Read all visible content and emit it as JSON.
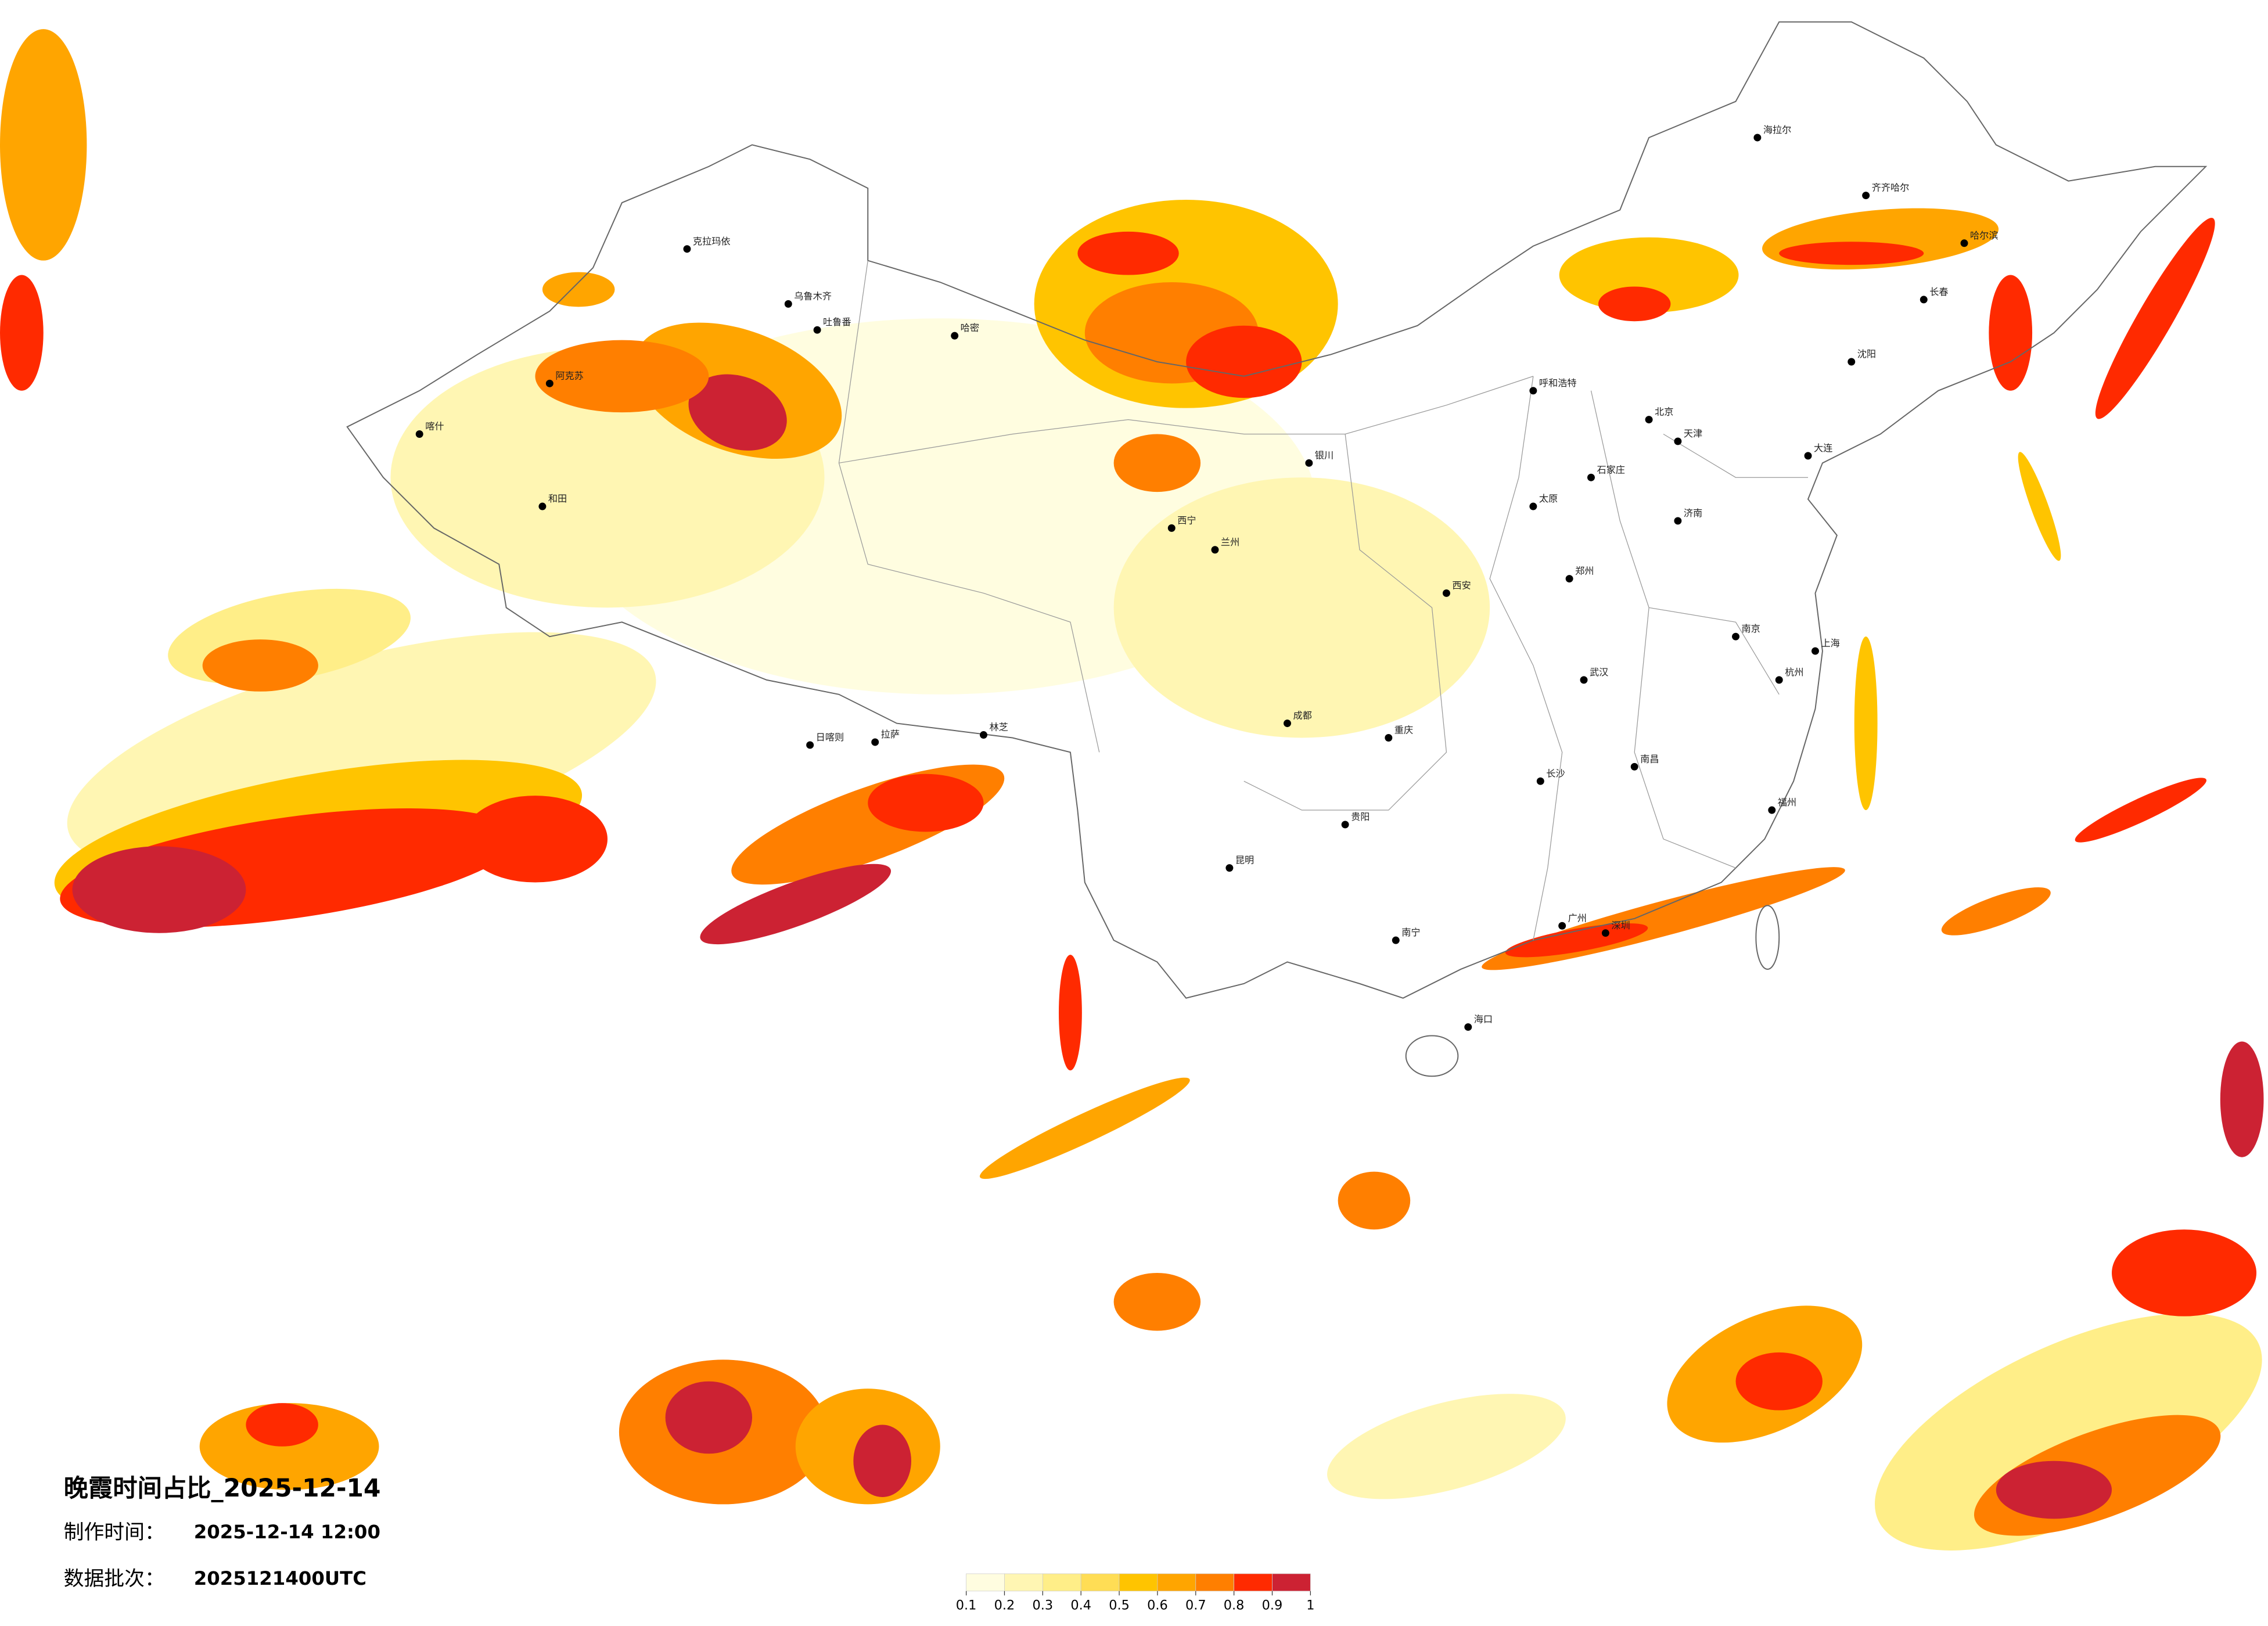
{
  "header": {
    "title": "晚霞时间占比_2025-12-14",
    "made_label": "制作时间：",
    "made_value": "2025-12-14 12:00",
    "batch_label": "数据批次：",
    "batch_value": "2025121400UTC"
  },
  "colorbar": {
    "ticks": [
      0.1,
      0.2,
      0.3,
      0.4,
      0.5,
      0.6,
      0.7,
      0.8,
      0.9,
      1
    ],
    "colors": [
      "#fffde0",
      "#fff6b3",
      "#ffee88",
      "#ffdd55",
      "#ffc400",
      "#ffa500",
      "#ff7f00",
      "#ff2a00",
      "#cc2233"
    ]
  },
  "cities": [
    "克拉玛依",
    "乌鲁木齐",
    "吐鲁番",
    "哈密",
    "阿克苏",
    "喀什",
    "和田",
    "日喀则",
    "拉萨",
    "林芝",
    "西宁",
    "兰州",
    "银川",
    "呼和浩特",
    "北京",
    "天津",
    "石家庄",
    "太原",
    "济南",
    "郑州",
    "西安",
    "成都",
    "重庆",
    "贵阳",
    "昆明",
    "南宁",
    "广州",
    "深圳",
    "海口",
    "长沙",
    "武汉",
    "南昌",
    "南京",
    "上海",
    "杭州",
    "福州",
    "长春",
    "哈尔滨",
    "沈阳",
    "大连",
    "齐齐哈尔",
    "海拉尔"
  ]
}
